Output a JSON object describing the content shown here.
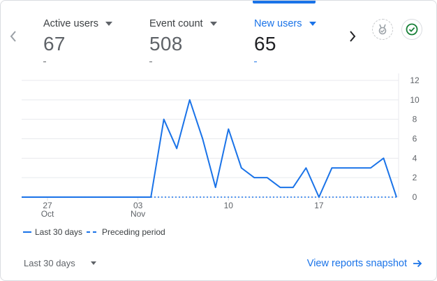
{
  "metrics": [
    {
      "label": "Active users",
      "value": "67",
      "selected": false
    },
    {
      "label": "Event count",
      "value": "508",
      "selected": false
    },
    {
      "label": "New users",
      "value": "65",
      "selected": true
    }
  ],
  "icons": {
    "prev": "chevron-left-icon",
    "next": "chevron-right-icon",
    "insights": "insights-badge-icon",
    "status": "check-circle-icon"
  },
  "colors": {
    "accent": "#1a73e8",
    "status_green": "#188038"
  },
  "chart_data": {
    "type": "line",
    "x_tick_labels": [
      {
        "day": "27",
        "month": "Oct"
      },
      {
        "day": "03",
        "month": "Nov"
      },
      {
        "day": "10",
        "month": ""
      },
      {
        "day": "17",
        "month": ""
      }
    ],
    "y_tick_labels": [
      "12",
      "10",
      "8",
      "6",
      "4",
      "2",
      "0"
    ],
    "ylim": [
      0,
      12
    ],
    "y_axis_side": "right",
    "series": [
      {
        "name": "Last 30 days",
        "style": "solid",
        "values": [
          0,
          0,
          0,
          0,
          0,
          0,
          0,
          0,
          0,
          0,
          0,
          8,
          5,
          10,
          6,
          1,
          7,
          3,
          2,
          2,
          1,
          1,
          3,
          0,
          3,
          3,
          3,
          3,
          4,
          0
        ]
      },
      {
        "name": "Preceding period",
        "style": "dashed",
        "values": [
          0,
          0,
          0,
          0,
          0,
          0,
          0,
          0,
          0,
          0,
          0,
          0,
          0,
          0,
          0,
          0,
          0,
          0,
          0,
          0,
          0,
          0,
          0,
          0,
          0,
          0,
          0,
          0,
          0,
          0
        ]
      }
    ]
  },
  "legend": {
    "current": "Last 30 days",
    "previous": "Preceding period"
  },
  "footer": {
    "range_label": "Last 30 days",
    "link_label": "View reports snapshot"
  }
}
